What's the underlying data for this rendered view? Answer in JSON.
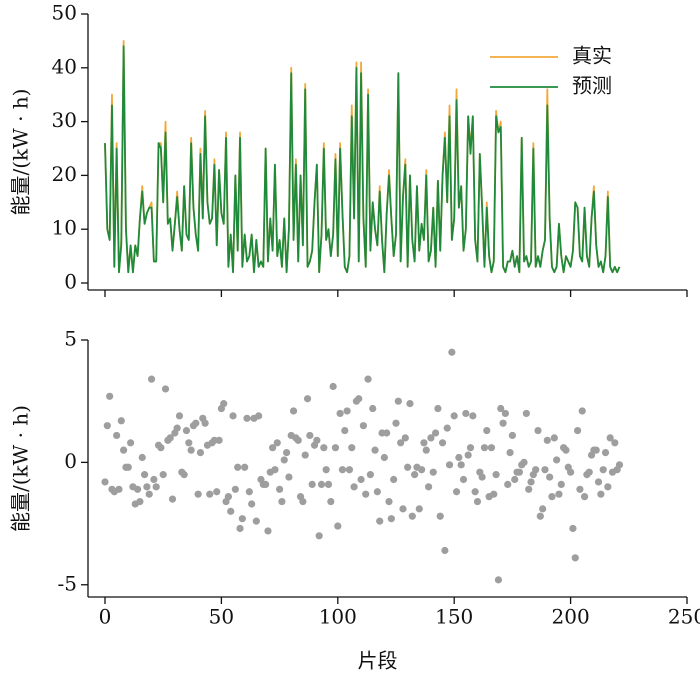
{
  "chart_data": [
    {
      "type": "line",
      "y_label": "能量/(kW · h)",
      "legend": "upper right",
      "xlim": [
        -7.3,
        250
      ],
      "xticks": [
        0,
        50,
        100,
        150,
        200,
        250
      ],
      "ylim": [
        -1.3,
        50
      ],
      "yticks": [
        0,
        10,
        20,
        30,
        40,
        50
      ],
      "x": [
        0,
        1,
        2,
        3,
        4,
        5,
        6,
        7,
        8,
        9,
        10,
        11,
        12,
        13,
        14,
        15,
        16,
        17,
        18,
        19,
        20,
        21,
        22,
        23,
        24,
        25,
        26,
        27,
        28,
        29,
        30,
        31,
        32,
        33,
        34,
        35,
        36,
        37,
        38,
        39,
        40,
        41,
        42,
        43,
        44,
        45,
        46,
        47,
        48,
        49,
        50,
        51,
        52,
        53,
        54,
        55,
        56,
        57,
        58,
        59,
        60,
        61,
        62,
        63,
        64,
        65,
        66,
        67,
        68,
        69,
        70,
        71,
        72,
        73,
        74,
        75,
        76,
        77,
        78,
        79,
        80,
        81,
        82,
        83,
        84,
        85,
        86,
        87,
        88,
        89,
        90,
        91,
        92,
        93,
        94,
        95,
        96,
        97,
        98,
        99,
        100,
        101,
        102,
        103,
        104,
        105,
        106,
        107,
        108,
        109,
        110,
        111,
        112,
        113,
        114,
        115,
        116,
        117,
        118,
        119,
        120,
        121,
        122,
        123,
        124,
        125,
        126,
        127,
        128,
        129,
        130,
        131,
        132,
        133,
        134,
        135,
        136,
        137,
        138,
        139,
        140,
        141,
        142,
        143,
        144,
        145,
        146,
        147,
        148,
        149,
        150,
        151,
        152,
        153,
        154,
        155,
        156,
        157,
        158,
        159,
        160,
        161,
        162,
        163,
        164,
        165,
        166,
        167,
        168,
        169,
        170,
        171,
        172,
        173,
        174,
        175,
        176,
        177,
        178,
        179,
        180,
        181,
        182,
        183,
        184,
        185,
        186,
        187,
        188,
        189,
        190,
        191,
        192,
        193,
        194,
        195,
        196,
        197,
        198,
        199,
        200,
        201,
        202,
        203,
        204,
        205,
        206,
        207,
        208,
        209,
        210,
        211,
        212,
        213,
        214,
        215,
        216,
        217,
        218,
        219,
        220,
        221
      ],
      "series": [
        {
          "name": "真实",
          "color": "#f2a93b",
          "values": [
            26,
            10,
            8,
            35,
            3,
            26,
            2,
            8,
            45,
            10,
            2,
            7,
            2,
            7,
            5,
            12,
            18,
            11,
            13,
            14,
            15,
            4,
            4,
            26,
            26,
            15,
            30,
            11,
            12,
            6,
            11,
            17,
            10,
            6,
            18,
            9,
            8,
            27,
            14,
            9,
            6,
            25,
            12,
            32,
            15,
            11,
            12,
            23,
            7,
            21,
            13,
            11,
            28,
            3,
            9,
            2,
            20,
            6,
            28,
            3,
            9,
            4,
            5,
            9,
            2,
            8,
            3,
            4,
            3,
            25,
            4,
            12,
            6,
            22,
            5,
            8,
            3,
            12,
            2,
            10,
            40,
            8,
            23,
            4,
            20,
            7,
            37,
            3,
            4,
            6,
            15,
            22,
            2,
            9,
            26,
            8,
            10,
            5,
            9,
            24,
            5,
            26,
            13,
            3,
            2,
            5,
            33,
            12,
            41,
            4,
            41,
            12,
            3,
            36,
            6,
            15,
            10,
            7,
            18,
            8,
            2,
            13,
            21,
            12,
            5,
            9,
            39,
            4,
            16,
            23,
            3,
            20,
            8,
            4,
            18,
            6,
            11,
            8,
            21,
            4,
            6,
            14,
            3,
            19,
            6,
            20,
            28,
            15,
            33,
            8,
            12,
            36,
            14,
            18,
            6,
            10,
            31,
            25,
            31,
            8,
            4,
            24,
            14,
            3,
            15,
            5,
            2,
            4,
            32,
            28,
            30,
            3,
            2,
            4,
            4,
            6,
            3,
            5,
            2,
            27,
            4,
            5,
            3,
            4,
            26,
            3,
            5,
            3,
            6,
            8,
            36,
            12,
            3,
            2,
            3,
            11,
            5,
            2,
            5,
            4,
            3,
            6,
            15,
            14,
            5,
            4,
            14,
            5,
            3,
            12,
            18,
            7,
            3,
            4,
            2,
            5,
            17,
            3,
            2,
            3,
            2,
            3
          ]
        },
        {
          "name": "预测",
          "color": "#1f8a3c",
          "values": [
            26,
            10,
            8,
            33,
            3,
            25,
            2,
            7,
            44,
            10,
            2,
            7,
            2,
            7,
            5,
            12,
            17,
            11,
            13,
            14,
            14,
            4,
            4,
            26,
            25,
            15,
            28,
            11,
            12,
            6,
            11,
            16,
            10,
            6,
            18,
            9,
            8,
            26,
            14,
            9,
            6,
            24,
            12,
            31,
            15,
            11,
            12,
            22,
            7,
            21,
            13,
            11,
            27,
            3,
            9,
            2,
            20,
            6,
            27,
            3,
            9,
            4,
            5,
            9,
            2,
            8,
            3,
            4,
            3,
            25,
            4,
            12,
            6,
            22,
            5,
            8,
            3,
            12,
            2,
            10,
            39,
            8,
            22,
            4,
            20,
            7,
            36,
            3,
            4,
            6,
            15,
            22,
            2,
            9,
            25,
            8,
            10,
            5,
            9,
            23,
            5,
            25,
            13,
            3,
            2,
            5,
            31,
            12,
            40,
            4,
            39,
            12,
            3,
            35,
            6,
            15,
            10,
            7,
            17,
            8,
            2,
            13,
            20,
            12,
            5,
            9,
            39,
            4,
            16,
            22,
            3,
            20,
            8,
            4,
            18,
            6,
            11,
            8,
            20,
            4,
            6,
            14,
            3,
            19,
            6,
            20,
            27,
            15,
            31,
            8,
            12,
            34,
            14,
            18,
            6,
            10,
            31,
            24,
            31,
            8,
            4,
            24,
            14,
            3,
            14,
            5,
            2,
            4,
            31,
            28,
            29,
            3,
            2,
            4,
            4,
            6,
            3,
            5,
            2,
            27,
            4,
            5,
            3,
            4,
            25,
            3,
            5,
            3,
            6,
            8,
            33,
            12,
            3,
            2,
            3,
            11,
            5,
            2,
            5,
            4,
            3,
            6,
            15,
            14,
            5,
            4,
            14,
            5,
            3,
            12,
            17,
            7,
            3,
            4,
            2,
            5,
            16,
            3,
            2,
            3,
            2,
            3
          ]
        }
      ]
    },
    {
      "type": "scatter",
      "x_label": "片段",
      "y_label": "能量/(kW · h)",
      "color": "#9e9e9e",
      "xlim": [
        -7.3,
        250
      ],
      "xticks": [
        0,
        50,
        100,
        150,
        200,
        250
      ],
      "ylim": [
        -5.5,
        5
      ],
      "yticks": [
        -5,
        0,
        5
      ],
      "x": [
        0,
        1,
        2,
        3,
        4,
        5,
        6,
        7,
        8,
        9,
        10,
        11,
        12,
        13,
        14,
        15,
        16,
        17,
        18,
        19,
        20,
        21,
        22,
        23,
        24,
        25,
        26,
        27,
        28,
        29,
        30,
        31,
        32,
        33,
        34,
        35,
        36,
        37,
        38,
        39,
        40,
        41,
        42,
        43,
        44,
        45,
        46,
        47,
        48,
        49,
        50,
        51,
        52,
        53,
        54,
        55,
        56,
        57,
        58,
        59,
        60,
        61,
        62,
        63,
        64,
        65,
        66,
        67,
        68,
        69,
        70,
        71,
        72,
        73,
        74,
        75,
        76,
        77,
        78,
        79,
        80,
        81,
        82,
        83,
        84,
        85,
        86,
        87,
        88,
        89,
        90,
        91,
        92,
        93,
        94,
        95,
        96,
        97,
        98,
        99,
        100,
        101,
        102,
        103,
        104,
        105,
        106,
        107,
        108,
        109,
        110,
        111,
        112,
        113,
        114,
        115,
        116,
        117,
        118,
        119,
        120,
        121,
        122,
        123,
        124,
        125,
        126,
        127,
        128,
        129,
        130,
        131,
        132,
        133,
        134,
        135,
        136,
        137,
        138,
        139,
        140,
        141,
        142,
        143,
        144,
        145,
        146,
        147,
        148,
        149,
        150,
        151,
        152,
        153,
        154,
        155,
        156,
        157,
        158,
        159,
        160,
        161,
        162,
        163,
        164,
        165,
        166,
        167,
        168,
        169,
        170,
        171,
        172,
        173,
        174,
        175,
        176,
        177,
        178,
        179,
        180,
        181,
        182,
        183,
        184,
        185,
        186,
        187,
        188,
        189,
        190,
        191,
        192,
        193,
        194,
        195,
        196,
        197,
        198,
        199,
        200,
        201,
        202,
        203,
        204,
        205,
        206,
        207,
        208,
        209,
        210,
        211,
        212,
        213,
        214,
        215,
        216,
        217,
        218,
        219,
        220,
        221
      ],
      "values": [
        -0.8,
        1.5,
        2.7,
        -1.1,
        -1.2,
        1.1,
        -1.1,
        1.7,
        0.5,
        -0.2,
        -0.2,
        0.8,
        -1.0,
        -1.7,
        -1.1,
        -1.6,
        0.2,
        -0.5,
        -1.0,
        -1.3,
        3.4,
        -0.7,
        -1.0,
        0.7,
        0.6,
        -0.5,
        3.0,
        0.9,
        1.0,
        -1.5,
        1.2,
        1.4,
        1.9,
        -0.4,
        -0.5,
        1.3,
        0.8,
        0.5,
        1.5,
        1.6,
        -1.3,
        0.4,
        1.8,
        1.6,
        0.7,
        -1.3,
        0.8,
        0.9,
        -1.2,
        0.9,
        2.2,
        2.4,
        -1.6,
        -1.4,
        -2.0,
        1.9,
        -1.1,
        -0.2,
        -2.7,
        -2.3,
        -0.2,
        1.8,
        -1.2,
        -1.7,
        1.8,
        -2.4,
        1.9,
        -0.7,
        -0.9,
        -0.9,
        -2.8,
        -0.4,
        0.6,
        -0.3,
        0.8,
        -1.1,
        -1.6,
        0.1,
        0.4,
        -0.6,
        1.1,
        2.1,
        1.0,
        0.9,
        -1.4,
        -1.6,
        0.3,
        2.6,
        1.1,
        -0.9,
        0.7,
        0.9,
        -3.0,
        -0.9,
        0.6,
        -0.3,
        -0.9,
        -1.6,
        3.1,
        0.6,
        -2.6,
        2.0,
        -0.3,
        1.3,
        2.1,
        -0.3,
        0.6,
        -1.0,
        2.5,
        2.6,
        -0.7,
        1.5,
        -1.3,
        3.4,
        -0.5,
        2.2,
        0.5,
        -1.2,
        -2.4,
        1.2,
        0.2,
        1.2,
        -1.6,
        -2.3,
        -0.7,
        1.6,
        2.5,
        0.8,
        -1.9,
        1.0,
        -0.2,
        2.4,
        -2.2,
        -0.5,
        -0.2,
        -1.9,
        -0.3,
        0.8,
        0.5,
        -1.0,
        1.0,
        -0.4,
        1.2,
        2.2,
        -2.2,
        0.8,
        -3.6,
        1.4,
        -0.1,
        4.5,
        1.9,
        -1.2,
        0.2,
        -0.1,
        -0.7,
        2.0,
        0.3,
        0.6,
        1.9,
        -1.2,
        -1.6,
        -0.4,
        -0.6,
        0.6,
        1.3,
        -1.4,
        0.6,
        -1.3,
        -0.5,
        -4.8,
        2.2,
        1.6,
        2.0,
        -0.9,
        0.4,
        1.1,
        -0.7,
        -0.4,
        -0.4,
        -0.1,
        0.0,
        2.0,
        -1.1,
        -0.8,
        -0.5,
        -0.3,
        1.3,
        -2.2,
        -1.9,
        -0.3,
        0.9,
        -0.6,
        -1.4,
        1.0,
        0.1,
        -1.3,
        -0.9,
        0.6,
        0.5,
        -0.2,
        -0.4,
        -2.7,
        -3.9,
        1.3,
        -1.1,
        2.1,
        -1.4,
        -0.5,
        -0.4,
        0.3,
        0.5,
        0.5,
        -0.8,
        -1.3,
        -0.3,
        0.4,
        -1.0,
        1.0,
        -0.4,
        0.8,
        -0.3,
        -0.1
      ]
    }
  ]
}
